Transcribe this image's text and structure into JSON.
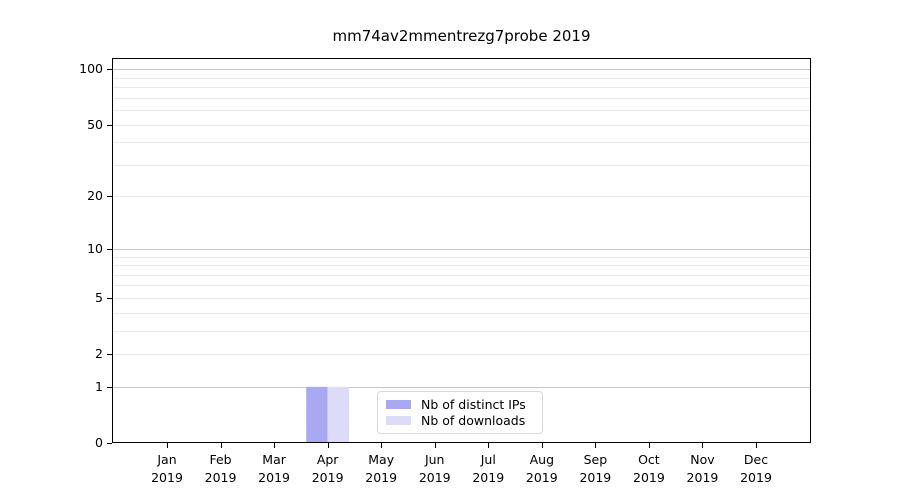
{
  "chart_data": {
    "type": "bar",
    "title": "mm74av2mmentrezg7probe 2019",
    "x_categories": [
      "Jan",
      "Feb",
      "Mar",
      "Apr",
      "May",
      "Jun",
      "Jul",
      "Aug",
      "Sep",
      "Oct",
      "Nov",
      "Dec"
    ],
    "x_year_label": "2019",
    "series": [
      {
        "name": "Nb of distinct IPs",
        "color": "#a9a9f3",
        "values": [
          0,
          0,
          0,
          1,
          0,
          0,
          0,
          0,
          0,
          0,
          0,
          0
        ]
      },
      {
        "name": "Nb of downloads",
        "color": "#dcdcf8",
        "values": [
          0,
          0,
          0,
          1,
          0,
          0,
          0,
          0,
          0,
          0,
          0,
          0
        ]
      }
    ],
    "y_axis": {
      "scale": "log1p",
      "tick_values": [
        0,
        1,
        2,
        5,
        10,
        20,
        50,
        100
      ],
      "lim": [
        0,
        115
      ]
    },
    "grid": {
      "major_values": [
        1,
        10,
        100
      ],
      "minor_values": [
        2,
        3,
        4,
        5,
        6,
        7,
        8,
        9,
        20,
        30,
        40,
        50,
        60,
        70,
        80,
        90
      ],
      "major_color": "#c6c6c6",
      "minor_color": "#eaeaea"
    },
    "legend_position": "lower center",
    "colors": {
      "spine": "#000000",
      "text": "#000000",
      "background": "#ffffff"
    }
  }
}
